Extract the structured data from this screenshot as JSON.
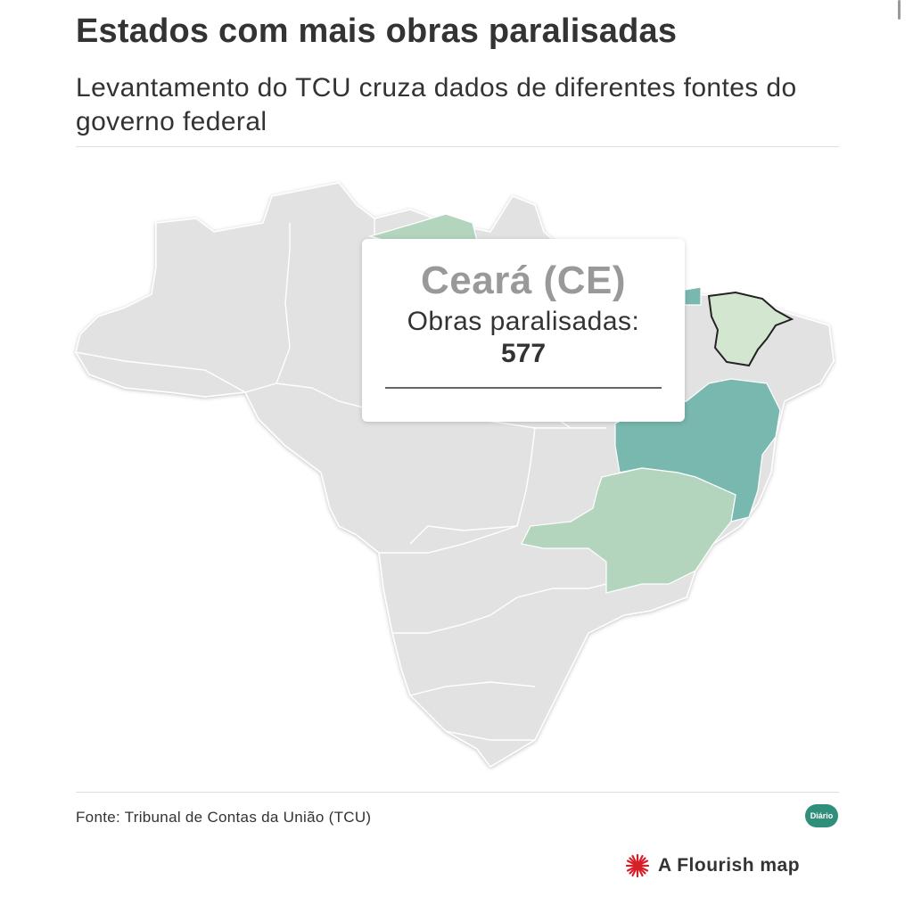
{
  "header": {
    "title": "Estados com mais obras paralisadas",
    "subtitle": "Levantamento do TCU cruza dados de diferentes fontes do governo federal"
  },
  "map": {
    "highlighted_state": "CE",
    "region_colors": {
      "default": "#e2e2e2",
      "low": "#d3e7d0",
      "mid": "#b3d5be",
      "high": "#78b8af",
      "border": "#ffffff",
      "selected_outline": "#222222"
    },
    "states": [
      {
        "code": "CE",
        "name": "Ceará",
        "color_level": "low"
      },
      {
        "code": "BA",
        "name": "Bahia",
        "color_level": "high"
      },
      {
        "code": "MG",
        "name": "Minas Gerais",
        "color_level": "mid"
      },
      {
        "code": "PA",
        "name": "Pará",
        "color_level": "mid"
      },
      {
        "code": "MA",
        "name": "Maranhão",
        "color_level": "high"
      }
    ]
  },
  "tooltip": {
    "name": "Ceará (CE)",
    "label": "Obras paralisadas:",
    "value": "577"
  },
  "footer": {
    "source": "Fonte: Tribunal de Contas da União (TCU)",
    "logo_text": "Diário",
    "credit": "A Flourish map",
    "credit_icon": "flourish-star-icon",
    "credit_icon_color": "#d81e26"
  }
}
